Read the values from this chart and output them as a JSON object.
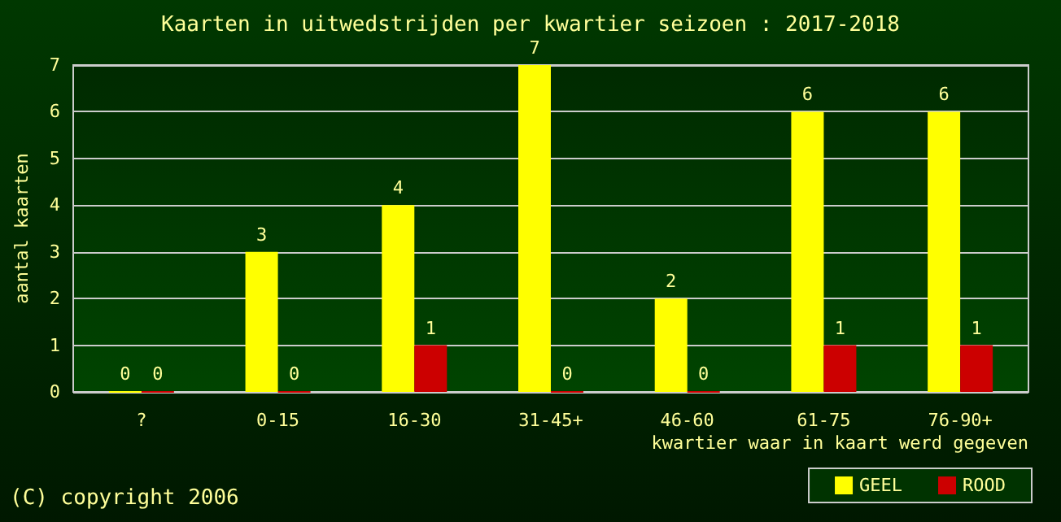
{
  "chart_data": {
    "type": "bar",
    "title": "Kaarten in uitwedstrijden per kwartier seizoen : 2017-2018",
    "xlabel": "kwartier waar in kaart werd gegeven",
    "ylabel": "aantal kaarten",
    "categories": [
      "?",
      "0-15",
      "16-30",
      "31-45+",
      "46-60",
      "61-75",
      "76-90+"
    ],
    "series": [
      {
        "name": "GEEL",
        "color": "#ffff00",
        "values": [
          0,
          3,
          4,
          7,
          2,
          6,
          6
        ]
      },
      {
        "name": "ROOD",
        "color": "#cc0000",
        "values": [
          0,
          0,
          1,
          0,
          0,
          1,
          1
        ]
      }
    ],
    "ylim": [
      0,
      7
    ],
    "yticks": [
      0,
      1,
      2,
      3,
      4,
      5,
      6,
      7
    ],
    "grid": "y",
    "legend": "bottom right",
    "data_labels": true,
    "annotations": [
      "(C) copyright 2006"
    ]
  }
}
